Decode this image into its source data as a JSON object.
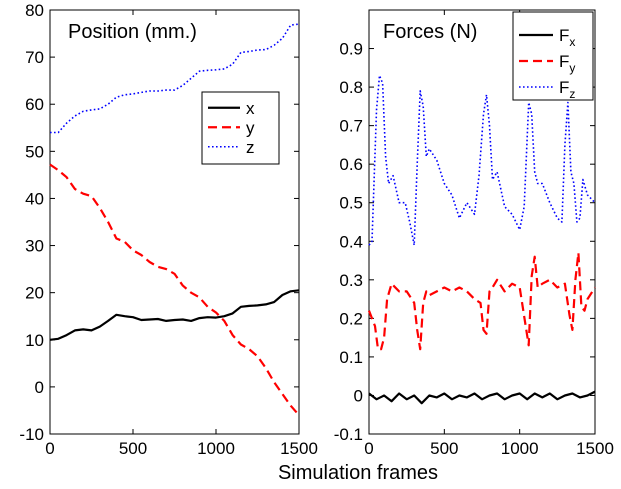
{
  "figure": {
    "xlabel": "Simulation frames"
  },
  "chart_data": [
    {
      "type": "line",
      "title": "Position (mm.)",
      "xlim": [
        0,
        1500
      ],
      "ylim": [
        -10,
        80
      ],
      "xticks": [
        0,
        500,
        1000,
        1500
      ],
      "yticks": [
        -10,
        0,
        10,
        20,
        30,
        40,
        50,
        60,
        70,
        80
      ],
      "legend": "upper-right",
      "series": [
        {
          "name": "x",
          "color": "#000000",
          "style": "solid",
          "x": [
            0,
            50,
            100,
            150,
            200,
            250,
            300,
            350,
            400,
            450,
            500,
            550,
            600,
            650,
            700,
            750,
            800,
            850,
            900,
            950,
            1000,
            1050,
            1100,
            1150,
            1200,
            1250,
            1300,
            1350,
            1400,
            1450,
            1500
          ],
          "y": [
            10,
            10.2,
            11,
            12,
            12.2,
            12,
            12.8,
            14,
            15.3,
            15,
            14.8,
            14.2,
            14.3,
            14.4,
            14,
            14.2,
            14.3,
            14,
            14.6,
            14.8,
            14.7,
            15,
            15.6,
            17,
            17.2,
            17.3,
            17.5,
            18,
            19.5,
            20.3,
            20.5
          ]
        },
        {
          "name": "y",
          "color": "#ff0000",
          "style": "dashed",
          "x": [
            0,
            50,
            100,
            150,
            200,
            250,
            300,
            350,
            400,
            450,
            500,
            550,
            600,
            650,
            700,
            750,
            800,
            850,
            900,
            950,
            1000,
            1050,
            1100,
            1150,
            1200,
            1250,
            1300,
            1350,
            1400,
            1450,
            1500
          ],
          "y": [
            47.2,
            46,
            44.5,
            42,
            41,
            40.5,
            38,
            35,
            31.5,
            30.8,
            29,
            28,
            26.5,
            25.5,
            25,
            24,
            21.5,
            20,
            19,
            17,
            15.8,
            14,
            11,
            9,
            8,
            6.5,
            4,
            1,
            -1.5,
            -4,
            -6
          ]
        },
        {
          "name": "z",
          "color": "#0000ff",
          "style": "dotted",
          "x": [
            0,
            50,
            100,
            150,
            200,
            250,
            300,
            350,
            400,
            450,
            500,
            550,
            600,
            650,
            700,
            750,
            800,
            850,
            900,
            950,
            1000,
            1050,
            1100,
            1150,
            1200,
            1250,
            1300,
            1350,
            1400,
            1450,
            1500
          ],
          "y": [
            54,
            54,
            56,
            57.5,
            58.5,
            58.8,
            59,
            60,
            61.5,
            62,
            62.2,
            62.5,
            62.8,
            62.8,
            63,
            63,
            64,
            65.5,
            67,
            67.2,
            67.3,
            67.5,
            68.5,
            71,
            71.2,
            71.5,
            71.6,
            72.5,
            74,
            76.8,
            77
          ]
        }
      ]
    },
    {
      "type": "line",
      "title": "Forces (N)",
      "xlim": [
        0,
        1500
      ],
      "ylim": [
        -0.1,
        1.0
      ],
      "xticks": [
        0,
        500,
        1000,
        1500
      ],
      "yticks": [
        -0.1,
        0,
        0.1,
        0.2,
        0.3,
        0.4,
        0.5,
        0.6,
        0.7,
        0.8,
        0.9
      ],
      "legend": "upper-right",
      "series": [
        {
          "name": "F",
          "subscript": "x",
          "color": "#000000",
          "style": "solid",
          "x": [
            0,
            50,
            100,
            150,
            200,
            250,
            300,
            350,
            400,
            450,
            500,
            550,
            600,
            650,
            700,
            750,
            800,
            850,
            900,
            950,
            1000,
            1050,
            1100,
            1150,
            1200,
            1250,
            1300,
            1350,
            1400,
            1450,
            1500
          ],
          "y": [
            0.005,
            -0.01,
            0,
            -0.015,
            0.005,
            -0.01,
            0,
            -0.02,
            0,
            -0.005,
            0.005,
            -0.01,
            0,
            -0.005,
            0.005,
            -0.01,
            0,
            0.005,
            -0.01,
            0,
            0.005,
            -0.01,
            0.005,
            -0.005,
            0.005,
            -0.01,
            0,
            0.005,
            -0.005,
            0,
            0.01
          ]
        },
        {
          "name": "F",
          "subscript": "y",
          "color": "#ff0000",
          "style": "dashed",
          "x": [
            0,
            20,
            40,
            60,
            80,
            100,
            120,
            150,
            200,
            250,
            300,
            320,
            340,
            360,
            380,
            400,
            450,
            500,
            550,
            600,
            650,
            700,
            740,
            760,
            780,
            800,
            820,
            850,
            900,
            950,
            1000,
            1040,
            1060,
            1080,
            1100,
            1120,
            1150,
            1200,
            1250,
            1300,
            1330,
            1350,
            1370,
            1390,
            1410,
            1430,
            1450,
            1500
          ],
          "y": [
            0.22,
            0.2,
            0.18,
            0.12,
            0.12,
            0.15,
            0.25,
            0.29,
            0.27,
            0.27,
            0.24,
            0.17,
            0.12,
            0.24,
            0.27,
            0.26,
            0.27,
            0.28,
            0.27,
            0.28,
            0.27,
            0.25,
            0.24,
            0.17,
            0.16,
            0.27,
            0.28,
            0.3,
            0.27,
            0.29,
            0.28,
            0.18,
            0.13,
            0.31,
            0.36,
            0.28,
            0.29,
            0.3,
            0.28,
            0.29,
            0.21,
            0.17,
            0.3,
            0.37,
            0.23,
            0.22,
            0.25,
            0.28
          ]
        },
        {
          "name": "F",
          "subscript": "z",
          "color": "#0000ff",
          "style": "dotted",
          "x": [
            0,
            20,
            50,
            70,
            90,
            110,
            130,
            160,
            200,
            240,
            270,
            300,
            320,
            340,
            360,
            380,
            400,
            450,
            500,
            550,
            600,
            650,
            700,
            730,
            760,
            780,
            800,
            820,
            850,
            900,
            950,
            1000,
            1030,
            1060,
            1080,
            1100,
            1120,
            1150,
            1200,
            1250,
            1280,
            1300,
            1320,
            1340,
            1360,
            1380,
            1400,
            1420,
            1450,
            1500
          ],
          "y": [
            0.39,
            0.4,
            0.74,
            0.83,
            0.81,
            0.62,
            0.55,
            0.57,
            0.5,
            0.5,
            0.45,
            0.39,
            0.6,
            0.79,
            0.75,
            0.62,
            0.64,
            0.61,
            0.55,
            0.52,
            0.46,
            0.5,
            0.47,
            0.57,
            0.73,
            0.78,
            0.7,
            0.56,
            0.58,
            0.49,
            0.47,
            0.43,
            0.49,
            0.76,
            0.73,
            0.58,
            0.55,
            0.55,
            0.5,
            0.46,
            0.45,
            0.65,
            0.76,
            0.58,
            0.55,
            0.45,
            0.46,
            0.56,
            0.52,
            0.5
          ]
        }
      ]
    }
  ]
}
